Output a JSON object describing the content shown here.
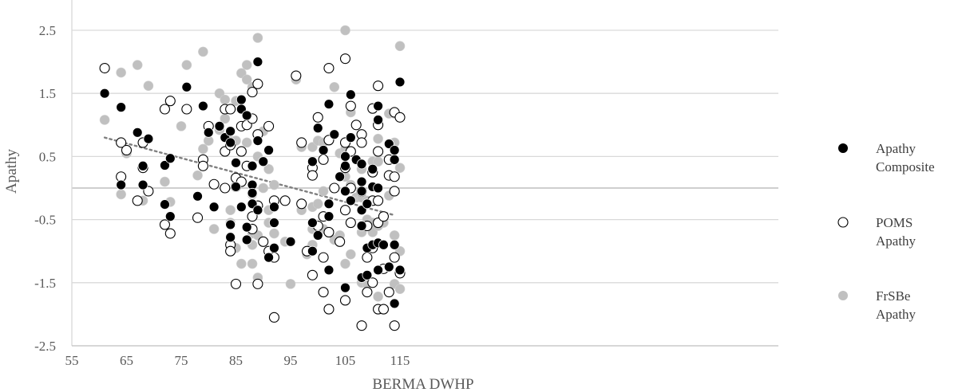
{
  "chart_data": {
    "type": "scatter",
    "xlabel": "BERMA DWHP",
    "ylabel": "Apathy",
    "xlim": [
      55,
      120
    ],
    "ylim": [
      -2.5,
      2.5
    ],
    "x_ticks": [
      55,
      65,
      75,
      85,
      95,
      105,
      115
    ],
    "y_ticks": [
      2.5,
      1.5,
      0.5,
      -0.5,
      -1.5,
      -2.5
    ],
    "y_tick_labels": [
      "2.5",
      "1.5",
      "0.5",
      "-0.5",
      "-1.5",
      "-2.5"
    ],
    "grid": "horizontal",
    "legend_position": "right",
    "trendline": {
      "style": "dotted",
      "color": "#7f7f7f",
      "x": [
        61,
        114
      ],
      "y": [
        0.8,
        -0.43
      ]
    },
    "series": [
      {
        "name": "Apathy Composite",
        "legend_lines": [
          "Apathy",
          "Composite"
        ],
        "marker": "filled",
        "color": "#000000",
        "points": [
          [
            61,
            1.5
          ],
          [
            64,
            1.28
          ],
          [
            64,
            0.05
          ],
          [
            67,
            0.88
          ],
          [
            68,
            0.35
          ],
          [
            68,
            0.05
          ],
          [
            69,
            0.78
          ],
          [
            72,
            0.36
          ],
          [
            72,
            -0.26
          ],
          [
            73,
            0.47
          ],
          [
            73,
            -0.45
          ],
          [
            76,
            1.6
          ],
          [
            78,
            -0.13
          ],
          [
            79,
            1.3
          ],
          [
            80,
            0.88
          ],
          [
            81,
            -0.3
          ],
          [
            82,
            0.98
          ],
          [
            83,
            0.8
          ],
          [
            84,
            0.9
          ],
          [
            84,
            0.72
          ],
          [
            84,
            -0.58
          ],
          [
            84,
            -0.78
          ],
          [
            85,
            0.4
          ],
          [
            85,
            0.02
          ],
          [
            86,
            1.4
          ],
          [
            86,
            1.25
          ],
          [
            86,
            -0.3
          ],
          [
            87,
            1.15
          ],
          [
            87,
            -0.62
          ],
          [
            87,
            -0.82
          ],
          [
            88,
            0.35
          ],
          [
            88,
            0.05
          ],
          [
            88,
            -0.08
          ],
          [
            88,
            -0.25
          ],
          [
            89,
            2.0
          ],
          [
            89,
            0.75
          ],
          [
            89,
            -0.35
          ],
          [
            90,
            0.42
          ],
          [
            91,
            0.6
          ],
          [
            91,
            -1.1
          ],
          [
            92,
            -0.3
          ],
          [
            92,
            -0.55
          ],
          [
            92,
            -0.95
          ],
          [
            95,
            -0.85
          ],
          [
            99,
            0.42
          ],
          [
            99,
            -0.55
          ],
          [
            99,
            -1.0
          ],
          [
            100,
            0.95
          ],
          [
            100,
            -0.75
          ],
          [
            101,
            0.6
          ],
          [
            102,
            1.33
          ],
          [
            102,
            -0.25
          ],
          [
            102,
            -0.45
          ],
          [
            102,
            -1.3
          ],
          [
            103,
            0.85
          ],
          [
            104,
            0.18
          ],
          [
            105,
            0.5
          ],
          [
            105,
            0.35
          ],
          [
            105,
            -0.05
          ],
          [
            105,
            -1.58
          ],
          [
            106,
            1.48
          ],
          [
            106,
            0.8
          ],
          [
            106,
            -0.2
          ],
          [
            107,
            0.45
          ],
          [
            108,
            0.38
          ],
          [
            108,
            0.1
          ],
          [
            108,
            -0.05
          ],
          [
            108,
            -0.35
          ],
          [
            108,
            -0.6
          ],
          [
            108,
            -1.42
          ],
          [
            109,
            -0.25
          ],
          [
            109,
            -0.95
          ],
          [
            109,
            -1.38
          ],
          [
            110,
            0.3
          ],
          [
            110,
            0.02
          ],
          [
            110,
            -0.9
          ],
          [
            111,
            1.3
          ],
          [
            111,
            1.08
          ],
          [
            111,
            0.0
          ],
          [
            111,
            -0.87
          ],
          [
            111,
            -1.3
          ],
          [
            112,
            -0.9
          ],
          [
            113,
            0.7
          ],
          [
            113,
            -1.25
          ],
          [
            114,
            0.6
          ],
          [
            114,
            0.45
          ],
          [
            114,
            -0.9
          ],
          [
            114,
            -1.83
          ],
          [
            115,
            1.68
          ],
          [
            115,
            -1.3
          ]
        ]
      },
      {
        "name": "POMS Apathy",
        "legend_lines": [
          "POMS",
          "Apathy"
        ],
        "marker": "open",
        "color": "#000000",
        "points": [
          [
            61,
            1.9
          ],
          [
            64,
            0.72
          ],
          [
            64,
            0.18
          ],
          [
            65,
            0.6
          ],
          [
            67,
            -0.2
          ],
          [
            68,
            0.72
          ],
          [
            68,
            0.32
          ],
          [
            69,
            -0.05
          ],
          [
            72,
            1.25
          ],
          [
            72,
            -0.58
          ],
          [
            73,
            1.38
          ],
          [
            73,
            -0.72
          ],
          [
            76,
            1.25
          ],
          [
            78,
            -0.47
          ],
          [
            79,
            0.45
          ],
          [
            79,
            0.35
          ],
          [
            80,
            0.98
          ],
          [
            81,
            0.06
          ],
          [
            83,
            0.58
          ],
          [
            83,
            0.0
          ],
          [
            83,
            1.25
          ],
          [
            84,
            1.25
          ],
          [
            84,
            0.68
          ],
          [
            84,
            -0.9
          ],
          [
            84,
            -1.0
          ],
          [
            85,
            0.16
          ],
          [
            85,
            0.02
          ],
          [
            85,
            -1.52
          ],
          [
            86,
            0.98
          ],
          [
            86,
            0.58
          ],
          [
            86,
            0.1
          ],
          [
            87,
            0.35
          ],
          [
            87,
            1.0
          ],
          [
            88,
            1.52
          ],
          [
            88,
            1.1
          ],
          [
            88,
            -0.45
          ],
          [
            88,
            -0.65
          ],
          [
            89,
            1.65
          ],
          [
            89,
            0.85
          ],
          [
            89,
            -0.28
          ],
          [
            89,
            -1.52
          ],
          [
            90,
            -0.85
          ],
          [
            91,
            0.98
          ],
          [
            91,
            -1.0
          ],
          [
            92,
            -0.2
          ],
          [
            92,
            -1.1
          ],
          [
            92,
            -2.05
          ],
          [
            94,
            -0.2
          ],
          [
            96,
            1.78
          ],
          [
            97,
            0.72
          ],
          [
            97,
            -0.25
          ],
          [
            98,
            -1.0
          ],
          [
            99,
            0.32
          ],
          [
            99,
            0.2
          ],
          [
            99,
            -1.38
          ],
          [
            100,
            1.12
          ],
          [
            100,
            -0.6
          ],
          [
            101,
            0.45
          ],
          [
            101,
            -0.45
          ],
          [
            101,
            -1.1
          ],
          [
            101,
            -1.65
          ],
          [
            102,
            1.9
          ],
          [
            102,
            0.76
          ],
          [
            102,
            -0.7
          ],
          [
            102,
            -1.92
          ],
          [
            103,
            0.0
          ],
          [
            104,
            -0.85
          ],
          [
            105,
            2.05
          ],
          [
            105,
            0.72
          ],
          [
            105,
            0.32
          ],
          [
            105,
            -0.35
          ],
          [
            105,
            -1.78
          ],
          [
            106,
            1.3
          ],
          [
            106,
            0.58
          ],
          [
            106,
            0.0
          ],
          [
            106,
            -0.55
          ],
          [
            107,
            1.0
          ],
          [
            108,
            0.85
          ],
          [
            108,
            0.72
          ],
          [
            108,
            -0.05
          ],
          [
            108,
            -2.18
          ],
          [
            109,
            -0.6
          ],
          [
            109,
            -1.1
          ],
          [
            109,
            -1.65
          ],
          [
            110,
            1.26
          ],
          [
            110,
            0.25
          ],
          [
            110,
            -0.2
          ],
          [
            110,
            -0.95
          ],
          [
            110,
            -1.5
          ],
          [
            111,
            1.62
          ],
          [
            111,
            1.0
          ],
          [
            111,
            0.58
          ],
          [
            111,
            -0.2
          ],
          [
            111,
            -0.55
          ],
          [
            111,
            -1.92
          ],
          [
            112,
            -0.45
          ],
          [
            112,
            -1.28
          ],
          [
            112,
            -1.92
          ],
          [
            113,
            0.45
          ],
          [
            113,
            0.2
          ],
          [
            113,
            -1.65
          ],
          [
            114,
            1.2
          ],
          [
            114,
            0.18
          ],
          [
            114,
            -0.05
          ],
          [
            114,
            -1.1
          ],
          [
            114,
            -2.18
          ],
          [
            115,
            1.12
          ],
          [
            115,
            -1.35
          ]
        ]
      },
      {
        "name": "FrSBe Apathy",
        "legend_lines": [
          "FrSBe",
          "Apathy"
        ],
        "marker": "filled",
        "color": "#c0c0c0",
        "points": [
          [
            61,
            1.08
          ],
          [
            64,
            1.83
          ],
          [
            64,
            -0.1
          ],
          [
            65,
            0.55
          ],
          [
            67,
            1.95
          ],
          [
            68,
            -0.2
          ],
          [
            69,
            1.62
          ],
          [
            72,
            0.1
          ],
          [
            73,
            -0.22
          ],
          [
            75,
            0.98
          ],
          [
            76,
            1.95
          ],
          [
            78,
            0.2
          ],
          [
            79,
            2.16
          ],
          [
            79,
            0.62
          ],
          [
            80,
            0.75
          ],
          [
            81,
            -0.65
          ],
          [
            82,
            1.5
          ],
          [
            82,
            0.92
          ],
          [
            83,
            1.4
          ],
          [
            83,
            1.1
          ],
          [
            84,
            0.75
          ],
          [
            84,
            -0.35
          ],
          [
            84,
            -0.55
          ],
          [
            85,
            1.38
          ],
          [
            85,
            0.75
          ],
          [
            85,
            -0.95
          ],
          [
            86,
            1.82
          ],
          [
            86,
            -1.2
          ],
          [
            87,
            1.95
          ],
          [
            87,
            1.72
          ],
          [
            87,
            0.72
          ],
          [
            88,
            1.6
          ],
          [
            88,
            -0.1
          ],
          [
            88,
            -0.72
          ],
          [
            88,
            -0.9
          ],
          [
            88,
            -1.2
          ],
          [
            89,
            2.38
          ],
          [
            89,
            0.5
          ],
          [
            89,
            -0.75
          ],
          [
            89,
            -1.42
          ],
          [
            90,
            0.9
          ],
          [
            90,
            0.0
          ],
          [
            91,
            0.3
          ],
          [
            91,
            -0.35
          ],
          [
            91,
            -0.55
          ],
          [
            92,
            0.05
          ],
          [
            92,
            -0.72
          ],
          [
            94,
            -0.85
          ],
          [
            95,
            -1.52
          ],
          [
            96,
            1.72
          ],
          [
            97,
            0.65
          ],
          [
            97,
            -0.35
          ],
          [
            98,
            -1.05
          ],
          [
            99,
            0.65
          ],
          [
            99,
            -0.3
          ],
          [
            99,
            -0.65
          ],
          [
            99,
            -0.9
          ],
          [
            100,
            0.75
          ],
          [
            100,
            -0.25
          ],
          [
            101,
            0.72
          ],
          [
            101,
            -0.05
          ],
          [
            101,
            -0.65
          ],
          [
            102,
            0.75
          ],
          [
            102,
            -0.25
          ],
          [
            103,
            1.6
          ],
          [
            103,
            -0.82
          ],
          [
            104,
            0.55
          ],
          [
            104,
            -0.75
          ],
          [
            105,
            2.5
          ],
          [
            105,
            0.62
          ],
          [
            105,
            0.18
          ],
          [
            105,
            -0.35
          ],
          [
            105,
            -1.2
          ],
          [
            106,
            1.2
          ],
          [
            106,
            0.05
          ],
          [
            106,
            -1.05
          ],
          [
            107,
            -0.15
          ],
          [
            108,
            0.3
          ],
          [
            108,
            -0.15
          ],
          [
            108,
            -0.7
          ],
          [
            108,
            -1.5
          ],
          [
            109,
            -0.2
          ],
          [
            109,
            -0.5
          ],
          [
            109,
            -1.52
          ],
          [
            110,
            0.42
          ],
          [
            110,
            -0.55
          ],
          [
            110,
            -0.7
          ],
          [
            111,
            1.62
          ],
          [
            111,
            0.78
          ],
          [
            111,
            0.42
          ],
          [
            111,
            -0.6
          ],
          [
            111,
            -1.72
          ],
          [
            112,
            -0.55
          ],
          [
            113,
            1.18
          ],
          [
            113,
            -0.12
          ],
          [
            114,
            1.18
          ],
          [
            114,
            0.72
          ],
          [
            114,
            -0.75
          ],
          [
            114,
            -1.52
          ],
          [
            115,
            2.25
          ],
          [
            115,
            0.32
          ],
          [
            115,
            -1.0
          ],
          [
            115,
            -1.6
          ]
        ]
      }
    ]
  }
}
